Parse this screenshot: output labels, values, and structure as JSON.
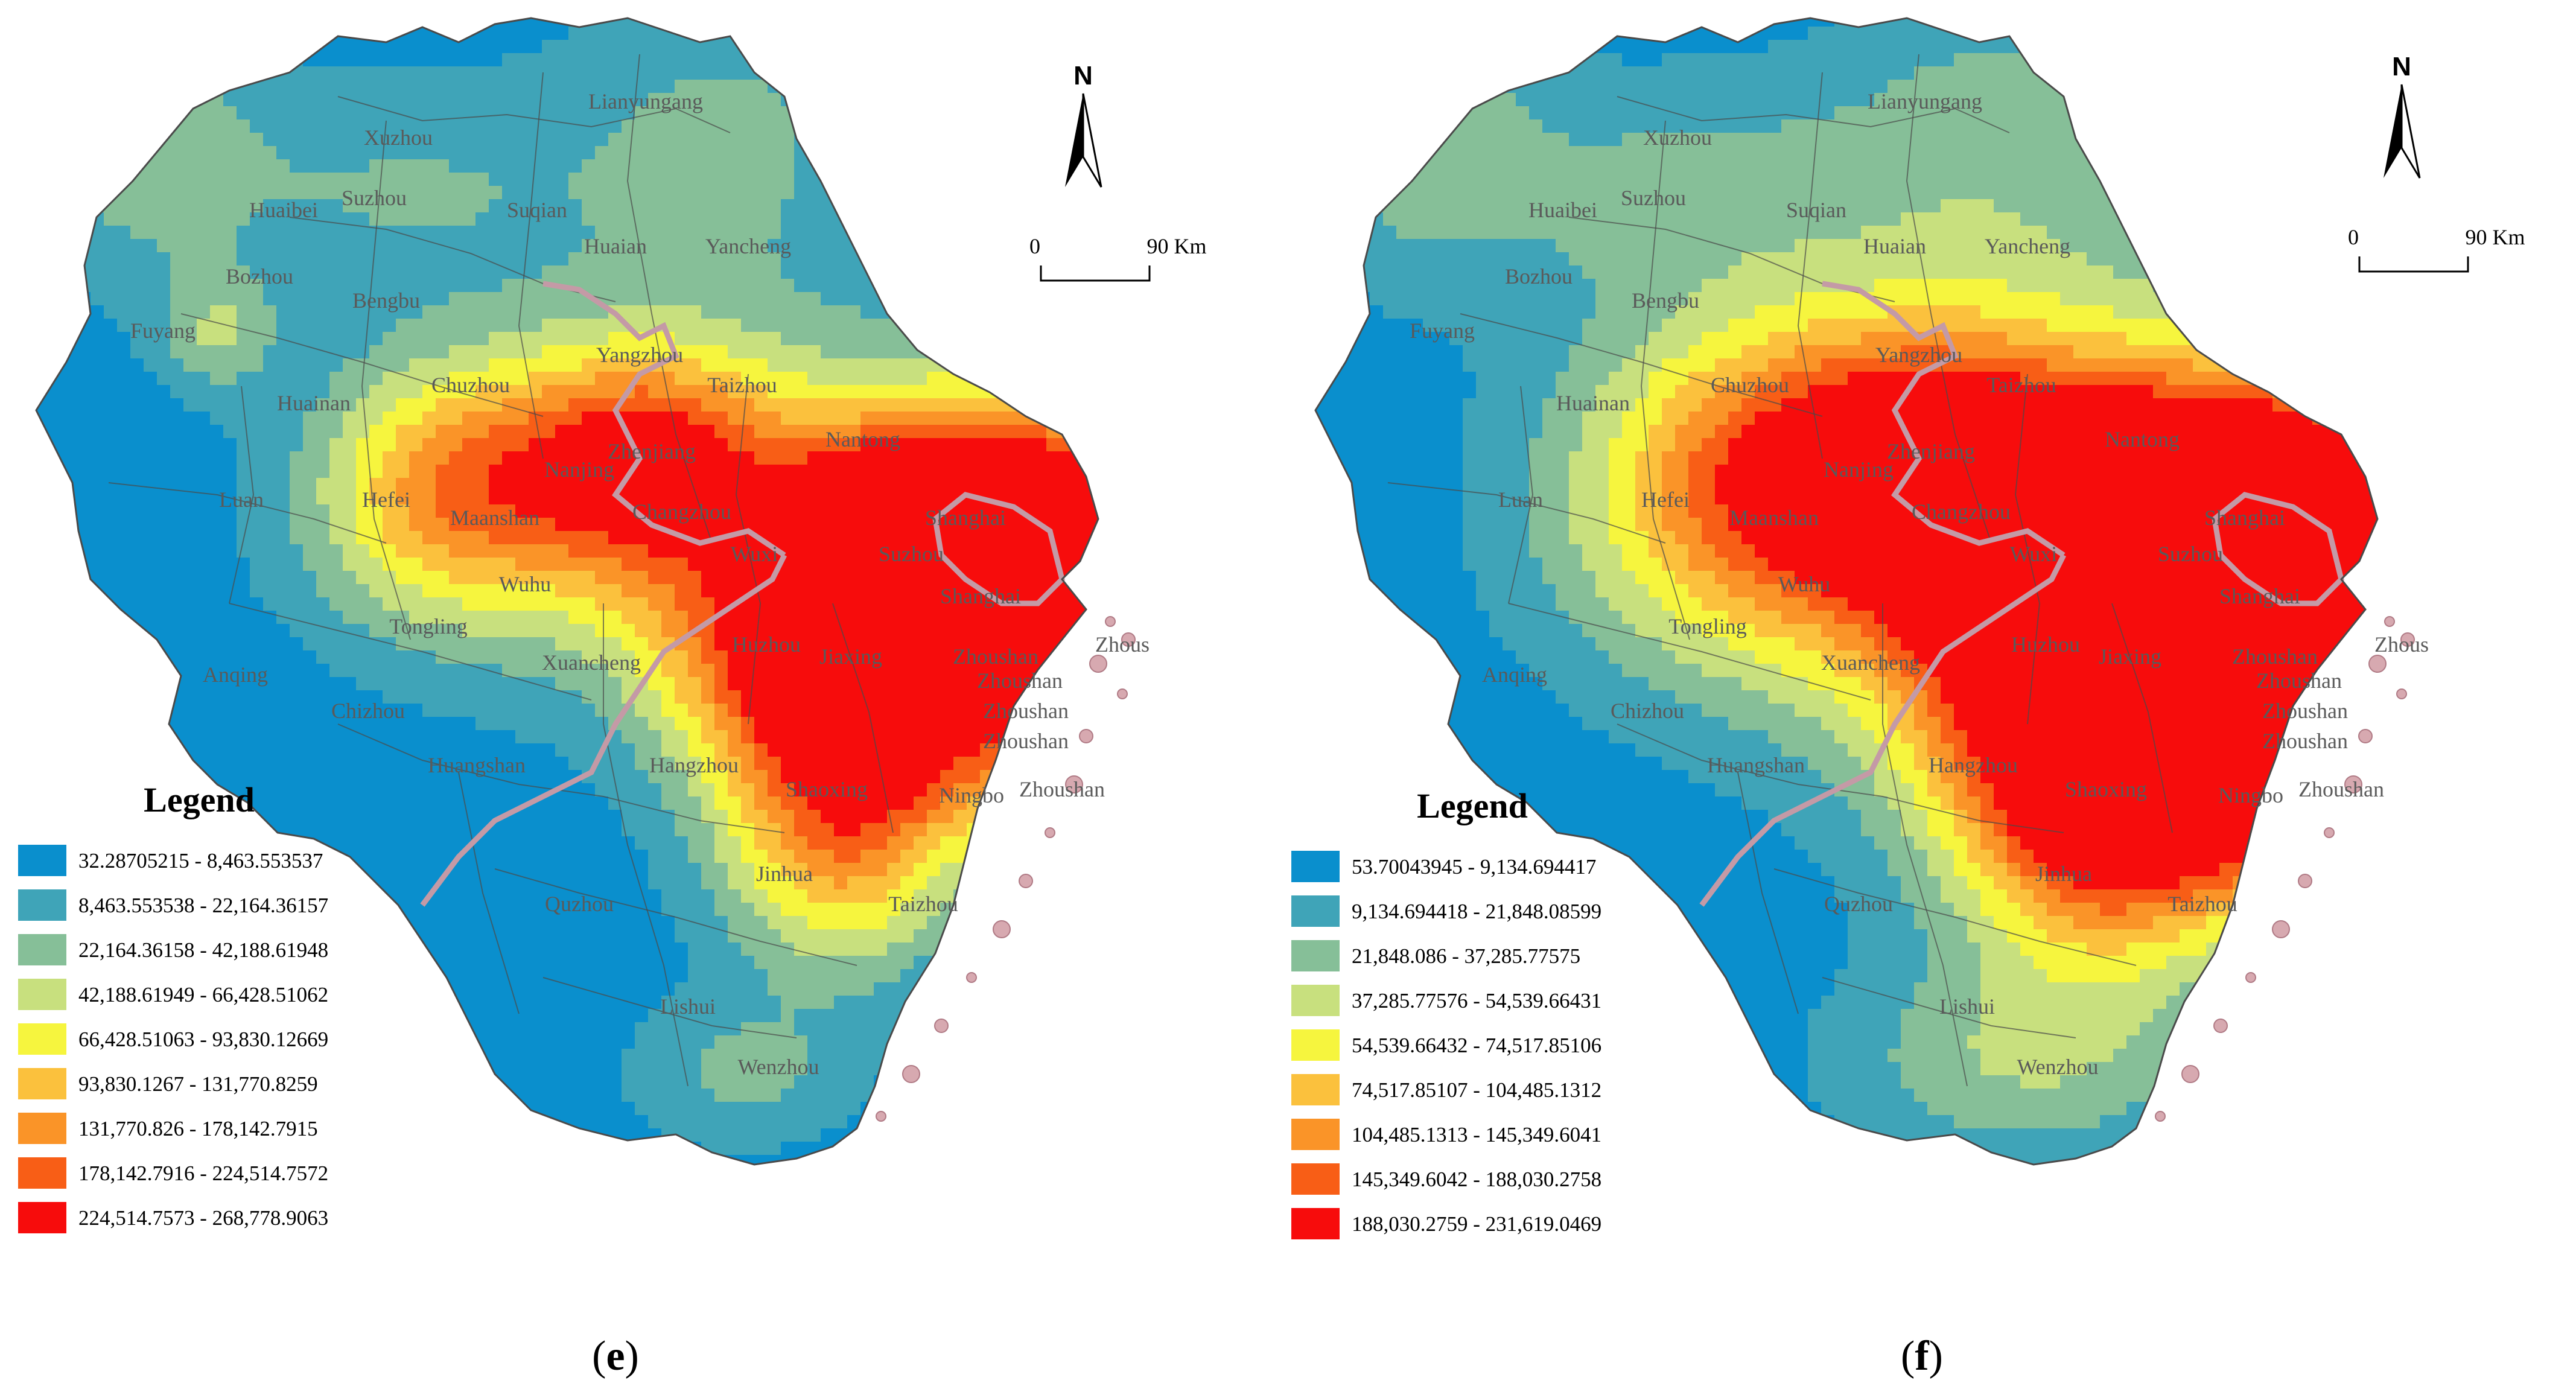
{
  "panels": [
    {
      "id": "e",
      "caption": {
        "open": "(",
        "letter": "e",
        "close": ")"
      },
      "legend": {
        "title": "Legend",
        "classes": [
          {
            "label": "32.28705215 - 8,463.553537",
            "color": "#0a8fcd"
          },
          {
            "label": "8,463.553538 - 22,164.36157",
            "color": "#3fa4b8"
          },
          {
            "label": "22,164.36158 - 42,188.61948",
            "color": "#86bf98"
          },
          {
            "label": "42,188.61949 - 66,428.51062",
            "color": "#c8e07e"
          },
          {
            "label": "66,428.51063 - 93,830.12669",
            "color": "#f6f53e"
          },
          {
            "label": "93,830.1267 - 131,770.8259",
            "color": "#fbc13d"
          },
          {
            "label": "131,770.826 - 178,142.7915",
            "color": "#fa9428"
          },
          {
            "label": "178,142.7916 - 224,514.7572",
            "color": "#f85e16"
          },
          {
            "label": "224,514.7573 - 268,778.9063",
            "color": "#f70c0c"
          }
        ]
      },
      "scale": {
        "start": "0",
        "end": "90 Km"
      },
      "north": "N"
    },
    {
      "id": "f",
      "caption": {
        "open": "(",
        "letter": "f",
        "close": ")"
      },
      "legend": {
        "title": "Legend",
        "classes": [
          {
            "label": "53.70043945 - 9,134.694417",
            "color": "#0a8fcd"
          },
          {
            "label": "9,134.694418 - 21,848.08599",
            "color": "#3fa4b8"
          },
          {
            "label": "21,848.086 - 37,285.77575",
            "color": "#86bf98"
          },
          {
            "label": "37,285.77576 - 54,539.66431",
            "color": "#c8e07e"
          },
          {
            "label": "54,539.66432 - 74,517.85106",
            "color": "#f6f53e"
          },
          {
            "label": "74,517.85107 - 104,485.1312",
            "color": "#fbc13d"
          },
          {
            "label": "104,485.1313 - 145,349.6041",
            "color": "#fa9428"
          },
          {
            "label": "145,349.6042 - 188,030.2758",
            "color": "#f85e16"
          },
          {
            "label": "188,030.2759 - 231,619.0469",
            "color": "#f70c0c"
          }
        ]
      },
      "scale": {
        "start": "0",
        "end": "90 Km"
      },
      "north": "N"
    }
  ],
  "cities": [
    "Xuzhou",
    "Lianyungang",
    "Suzhou",
    "Huaibei",
    "Suqian",
    "Huaian",
    "Yancheng",
    "Bozhou",
    "Bengbu",
    "Fuyang",
    "Yangzhou",
    "Chuzhou",
    "Taizhou",
    "Huainan",
    "Nanjing",
    "Zhenjiang",
    "Nantong",
    "Luan",
    "Hefei",
    "Maanshan",
    "Changzhou",
    "Shanghai",
    "Wuxi",
    "Suzhou",
    "Shanghai",
    "Wuhu",
    "Tongling",
    "Huzhou",
    "Jiaxing",
    "Zhoushan",
    "Zhoushan",
    "Zhous",
    "Anqing",
    "Xuancheng",
    "Chizhou",
    "Zhoushan",
    "Zhoushan",
    "Hangzhou",
    "Huangshan",
    "Shaoxing",
    "Ningbo",
    "Zhoushan",
    "Jinhua",
    "Quzhou",
    "Taizhou",
    "Lishui",
    "Wenzhou"
  ]
}
